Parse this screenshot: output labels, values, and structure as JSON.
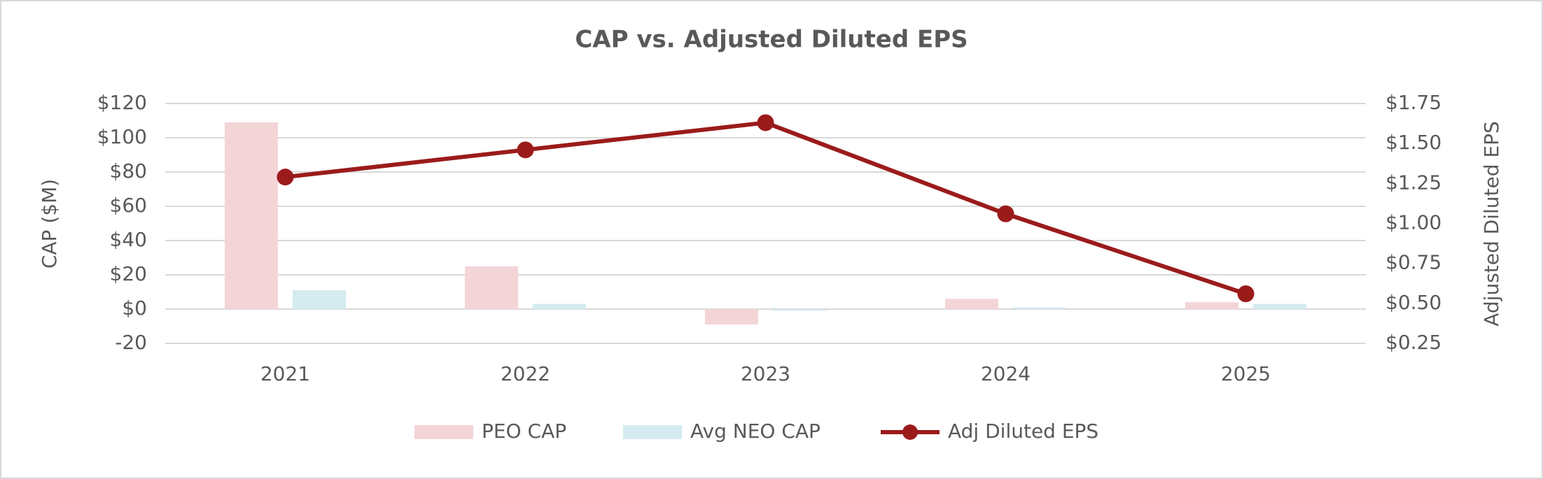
{
  "chart_data": {
    "type": "bar-line",
    "title": "CAP vs. Adjusted Diluted EPS",
    "y_label": "CAP ($M)",
    "y2_label": "Adjusted Diluted EPS",
    "categories": [
      "2021",
      "2022",
      "2023",
      "2024",
      "2025"
    ],
    "series": [
      {
        "name": "PEO CAP",
        "type": "bar",
        "color": "#f4d5d7",
        "values": [
          109,
          25,
          -9,
          6,
          4
        ]
      },
      {
        "name": "Avg NEO CAP",
        "type": "bar",
        "color": "#d4ecef",
        "values": [
          11,
          3,
          -1,
          1,
          3
        ]
      },
      {
        "name": "Adj Diluted EPS",
        "type": "line",
        "axis": "y2",
        "color": "#9b1b1b",
        "values": [
          1.29,
          1.46,
          1.63,
          1.06,
          0.56
        ]
      }
    ],
    "ylim": [
      -20,
      120
    ],
    "yticks": [
      {
        "value": -20,
        "label": "-20"
      },
      {
        "value": 0,
        "label": "$0"
      },
      {
        "value": 20,
        "label": "$20"
      },
      {
        "value": 40,
        "label": "$40"
      },
      {
        "value": 60,
        "label": "$60"
      },
      {
        "value": 80,
        "label": "$80"
      },
      {
        "value": 100,
        "label": "$100"
      },
      {
        "value": 120,
        "label": "$120"
      }
    ],
    "y2lim": [
      0.25,
      1.75
    ],
    "y2ticks": [
      {
        "value": 0.25,
        "label": "$0.25"
      },
      {
        "value": 0.5,
        "label": "$0.50"
      },
      {
        "value": 0.75,
        "label": "$0.75"
      },
      {
        "value": 1.0,
        "label": "$1.00"
      },
      {
        "value": 1.25,
        "label": "$1.25"
      },
      {
        "value": 1.5,
        "label": "$1.50"
      },
      {
        "value": 1.75,
        "label": "$1.75"
      }
    ],
    "grid": true,
    "legend": "bottom"
  }
}
